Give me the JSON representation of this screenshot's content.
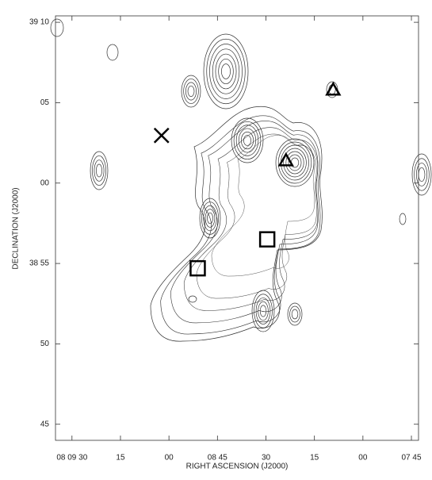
{
  "chart_data": {
    "type": "scatter",
    "xlabel": "RIGHT ASCENSION (J2000)",
    "ylabel": "DECLINATION (J2000)",
    "xlim": [
      575.1,
      462.8
    ],
    "ylim": [
      44.0,
      70.4
    ],
    "xticks": [
      {
        "value": 570,
        "label": "08 09 30"
      },
      {
        "value": 555,
        "label": "15"
      },
      {
        "value": 540,
        "label": "00"
      },
      {
        "value": 525,
        "label": "08 45"
      },
      {
        "value": 510,
        "label": "30"
      },
      {
        "value": 495,
        "label": "15"
      },
      {
        "value": 480,
        "label": "00"
      },
      {
        "value": 465,
        "label": "07 45"
      }
    ],
    "yticks": [
      {
        "value": 70,
        "label": "39 10"
      },
      {
        "value": 65,
        "label": "05"
      },
      {
        "value": 60,
        "label": "00"
      },
      {
        "value": 55,
        "label": "38 55"
      },
      50,
      45
    ],
    "series": [
      {
        "marker": "x",
        "color": "#000000",
        "x": [
          542.3
        ],
        "y": [
          62.96
        ]
      },
      {
        "marker": "triangle",
        "color": "#000000",
        "x": [
          489.2,
          503.8
        ],
        "y": [
          65.8,
          61.4
        ]
      },
      {
        "marker": "square",
        "color": "#000000",
        "x": [
          509.6,
          531.1
        ],
        "y": [
          56.5,
          54.7
        ]
      }
    ]
  }
}
